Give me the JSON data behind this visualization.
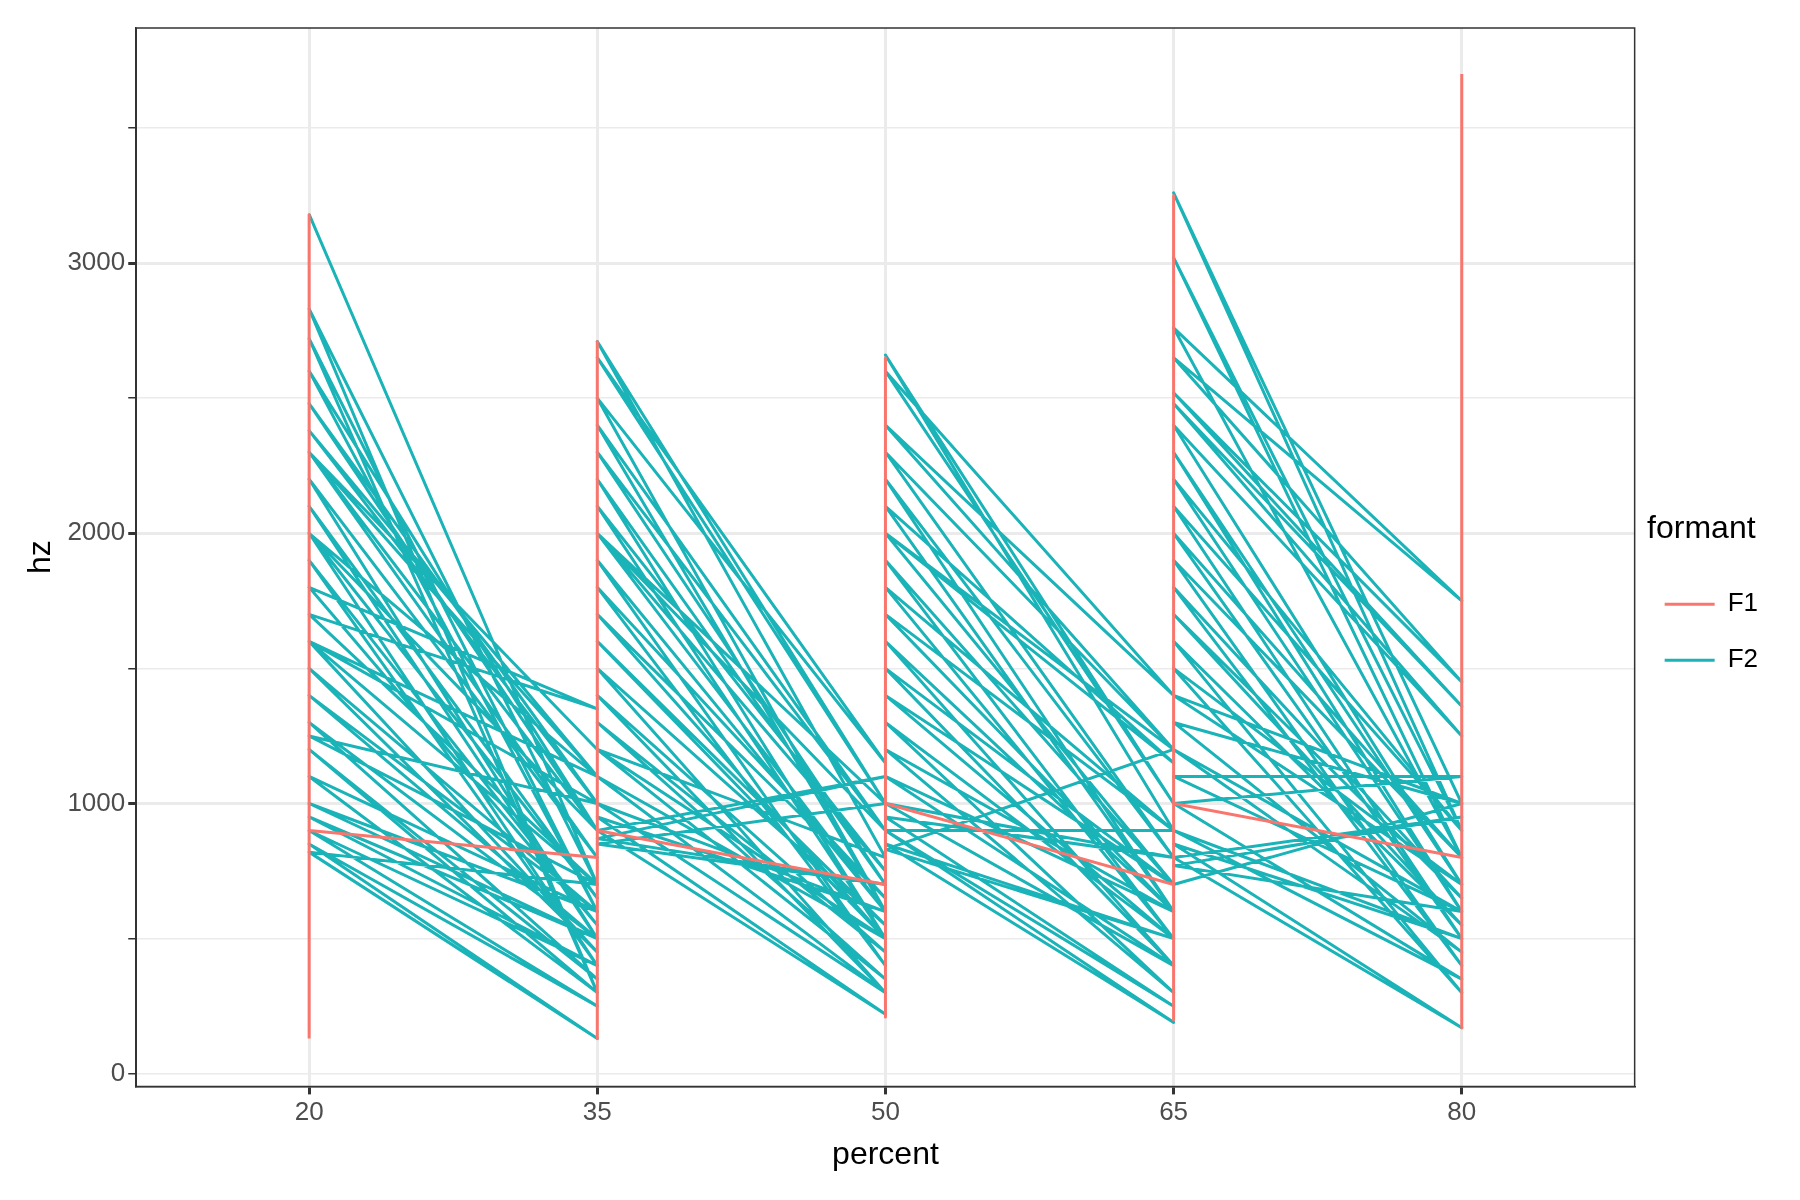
{
  "chart_data": {
    "type": "line",
    "xlabel": "percent",
    "ylabel": "hz",
    "legend_title": "formant",
    "legend": "right",
    "grid": true,
    "xlim": [
      11,
      89
    ],
    "xticks": [
      20,
      35,
      50,
      65,
      80
    ],
    "ylim": [
      -47,
      3870
    ],
    "yticks": [
      0,
      {
        "value": 500,
        "label": null
      },
      1000,
      {
        "value": 1500,
        "label": null
      },
      2000,
      {
        "value": 2500,
        "label": null
      },
      3000,
      {
        "value": 3500,
        "label": null
      }
    ],
    "series": [
      {
        "name": "F1",
        "color": "#f8766d",
        "x": [
          20,
          20,
          20,
          35,
          35,
          35,
          35,
          50,
          50,
          50,
          50,
          65,
          65,
          65,
          65,
          80,
          80,
          80
        ],
        "values": [
          130,
          3180,
          900,
          800,
          130,
          2710,
          900,
          700,
          210,
          2650,
          1000,
          700,
          200,
          3250,
          1000,
          800,
          170,
          3700
        ]
      },
      {
        "name": "F2",
        "color": "#19b3b8",
        "x": [
          20,
          35,
          20,
          35,
          20,
          35,
          20,
          35,
          20,
          35,
          20,
          35,
          20,
          35,
          20,
          35,
          20,
          35,
          20,
          35,
          20,
          35,
          20,
          35,
          20,
          35,
          20,
          35,
          20,
          35,
          20,
          35,
          20,
          35,
          20,
          35,
          20,
          35,
          20,
          35,
          20,
          35,
          20,
          35,
          20,
          35,
          20,
          35,
          20,
          35,
          20,
          35,
          20,
          35,
          20,
          35,
          50,
          35,
          50,
          35,
          50,
          35,
          50,
          35,
          50,
          35,
          50,
          35,
          50,
          35,
          50,
          35,
          50,
          35,
          50,
          35,
          50,
          35,
          50,
          35,
          50,
          35,
          50,
          35,
          50,
          35,
          50,
          35,
          50,
          35,
          50,
          35,
          50,
          35,
          50,
          35,
          50,
          35,
          50,
          35,
          50,
          35,
          50,
          65,
          50,
          65,
          50,
          65,
          50,
          65,
          50,
          65,
          50,
          65,
          50,
          65,
          50,
          65,
          50,
          65,
          50,
          65,
          50,
          65,
          50,
          65,
          50,
          65,
          50,
          65,
          50,
          65,
          50,
          65,
          50,
          65,
          50,
          65,
          50,
          65,
          50,
          65,
          50,
          65,
          50,
          65,
          50,
          65,
          80,
          65,
          80,
          65,
          80,
          65,
          80,
          65,
          80,
          65,
          80,
          65,
          80,
          65,
          80,
          65,
          80,
          65,
          80,
          65,
          80,
          65,
          80,
          65,
          80,
          65,
          80,
          65,
          80,
          65,
          80,
          65,
          80,
          65,
          80,
          65,
          80,
          65,
          80,
          65,
          80,
          65,
          80,
          65,
          80,
          65,
          80,
          65,
          80,
          65,
          80
        ],
        "values": [
          3180,
          700,
          2830,
          300,
          2720,
          600,
          2600,
          900,
          2480,
          1000,
          2380,
          1100,
          2300,
          800,
          2200,
          500,
          2100,
          650,
          2000,
          400,
          1900,
          550,
          1800,
          1350,
          1700,
          700,
          1600,
          450,
          1500,
          600,
          1400,
          500,
          1300,
          350,
          1200,
          300,
          1100,
          600,
          1000,
          500,
          950,
          400,
          900,
          250,
          850,
          130,
          820,
          700,
          1250,
          1000,
          1600,
          1100,
          2000,
          900,
          2300,
          1200,
          800,
          2710,
          1000,
          2650,
          1150,
          2500,
          600,
          2400,
          900,
          2300,
          700,
          2200,
          500,
          2100,
          750,
          2000,
          600,
          1900,
          400,
          1800,
          650,
          1700,
          500,
          1600,
          550,
          1500,
          300,
          1400,
          450,
          1300,
          350,
          1200,
          500,
          1100,
          300,
          1000,
          600,
          950,
          220,
          900,
          1100,
          870,
          700,
          850,
          1000,
          2000,
          900,
          900,
          2660,
          1000,
          2600,
          1400,
          2400,
          1200,
          2300,
          800,
          2200,
          600,
          2100,
          1150,
          2000,
          700,
          1900,
          500,
          1800,
          900,
          1700,
          600,
          1600,
          400,
          1500,
          700,
          1400,
          500,
          1300,
          300,
          1200,
          600,
          1100,
          400,
          1000,
          800,
          950,
          250,
          900,
          190,
          850,
          500,
          830,
          1200,
          2000,
          700,
          1000,
          3260,
          900,
          3020,
          800,
          2760,
          1750,
          2650,
          1450,
          2520,
          1360,
          2480,
          1250,
          2400,
          700,
          2300,
          600,
          2200,
          900,
          2100,
          500,
          2000,
          800,
          1900,
          400,
          1800,
          650,
          1700,
          550,
          1600,
          300,
          1500,
          700,
          1400,
          1000,
          1300,
          450,
          1200,
          600,
          1100,
          1100,
          1000,
          350,
          900,
          500,
          850,
          170,
          800,
          950,
          770,
          600
        ]
      }
    ]
  }
}
